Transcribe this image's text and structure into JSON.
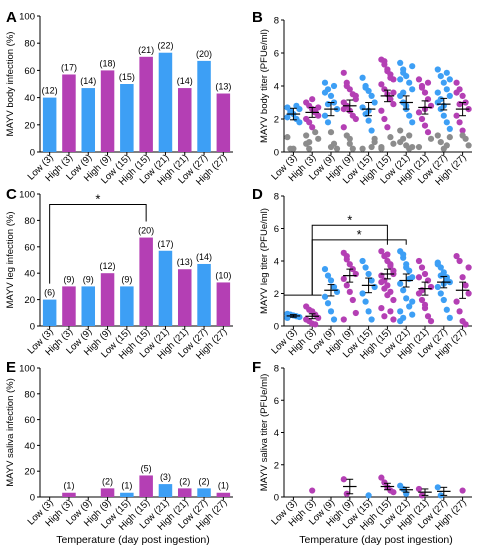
{
  "colors": {
    "low": "#3d9ff5",
    "high": "#b43fb4",
    "gray": "#8c8c8c"
  },
  "xlabel_left": "Temperature (day post ingestion)",
  "xlabel_right": "Temperature (day post ingestion)",
  "chart_data": [
    {
      "panel": "A",
      "type": "bar",
      "ylabel": "MAYV body infection (%)",
      "ylim": [
        0,
        100
      ],
      "yticks": [
        0,
        20,
        40,
        60,
        80,
        100
      ],
      "categories": [
        "Low (3)",
        "High (3)",
        "Low (9)",
        "High (9)",
        "Low (15)",
        "High (15)",
        "Low (21)",
        "High (21)",
        "Low (27)",
        "High (27)"
      ],
      "values": [
        40,
        57,
        47,
        60,
        50,
        70,
        73,
        47,
        67,
        43
      ],
      "labels": [
        "(12)",
        "(17)",
        "(14)",
        "(18)",
        "(15)",
        "(21)",
        "(22)",
        "(14)",
        "(20)",
        "(13)"
      ],
      "sig": []
    },
    {
      "panel": "B",
      "type": "scatter",
      "ylabel": "MAYV body titer (PFUe/ml)",
      "ylim": [
        0,
        8
      ],
      "yticks": [
        0,
        2,
        4,
        6,
        8
      ],
      "categories": [
        "Low (3)",
        "High (3)",
        "Low (9)",
        "High (9)",
        "Low (15)",
        "High (15)",
        "Low (21)",
        "High (21)",
        "Low (27)",
        "High (27)"
      ],
      "groups": [
        {
          "points": [
            2.7,
            2.5,
            2.3,
            2.0,
            1.8,
            0.9,
            0.2,
            0.2,
            2.8,
            2.6,
            2.1,
            2.4
          ],
          "gray": [
            5,
            6,
            7
          ],
          "mean": 2.3,
          "err": 0.35
        },
        {
          "points": [
            3.0,
            2.8,
            2.6,
            2.5,
            2.2,
            2.0,
            1.8,
            1.5,
            1.2,
            0.8,
            0.5,
            0.2,
            3.2,
            2.4,
            2.7,
            1.0,
            0.6
          ],
          "gray": [
            8,
            9,
            10,
            11,
            15,
            16
          ],
          "mean": 2.4,
          "err": 0.3
        },
        {
          "points": [
            4.2,
            3.8,
            3.4,
            3.0,
            2.6,
            2.2,
            1.8,
            1.2,
            0.5,
            0.2,
            3.6,
            2.9,
            0.3,
            4.0
          ],
          "gray": [
            7,
            8,
            9,
            12
          ],
          "mean": 2.6,
          "err": 0.4
        },
        {
          "points": [
            4.8,
            4.2,
            3.8,
            3.5,
            3.2,
            3.0,
            2.8,
            2.5,
            2.2,
            2.0,
            1.5,
            1.0,
            0.5,
            0.2,
            3.4,
            2.6,
            4.0,
            0.8
          ],
          "gray": [
            11,
            12,
            13,
            17
          ],
          "mean": 2.8,
          "err": 0.35
        },
        {
          "points": [
            4.5,
            4.0,
            3.7,
            3.4,
            3.0,
            2.7,
            2.3,
            1.9,
            1.3,
            0.6,
            0.2,
            3.9,
            2.5,
            0.3,
            0.8
          ],
          "gray": [
            9,
            10,
            13,
            14
          ],
          "mean": 2.6,
          "err": 0.4
        },
        {
          "points": [
            5.6,
            5.3,
            5.0,
            4.7,
            4.4,
            4.1,
            3.8,
            3.5,
            3.2,
            2.9,
            2.5,
            2.0,
            1.5,
            0.9,
            0.5,
            0.2,
            5.5,
            4.9,
            4.5,
            3.6,
            0.3
          ],
          "gray": [
            13,
            14,
            15,
            20
          ],
          "mean": 3.4,
          "err": 0.35
        },
        {
          "points": [
            5.4,
            5.0,
            4.6,
            4.2,
            3.8,
            3.4,
            3.0,
            2.6,
            2.2,
            1.8,
            1.3,
            0.8,
            0.4,
            0.2,
            5.2,
            4.4,
            3.6,
            2.8,
            1.0,
            0.3,
            0.6,
            4.8
          ],
          "gray": [
            10,
            11,
            12,
            13,
            18,
            19,
            20
          ],
          "mean": 3.0,
          "err": 0.4
        },
        {
          "points": [
            4.4,
            4.0,
            3.6,
            3.2,
            2.8,
            2.4,
            2.0,
            1.6,
            1.2,
            0.8,
            0.3,
            3.9,
            2.6,
            4.2
          ],
          "gray": [
            9,
            10
          ],
          "mean": 2.7,
          "err": 0.4
        },
        {
          "points": [
            5.0,
            4.6,
            4.2,
            3.8,
            3.4,
            3.0,
            2.6,
            2.2,
            1.8,
            1.4,
            1.0,
            0.6,
            0.2,
            4.8,
            4.4,
            3.6,
            3.2,
            2.8,
            0.4,
            0.9
          ],
          "gray": [
            10,
            11,
            12,
            18,
            19
          ],
          "mean": 2.9,
          "err": 0.35
        },
        {
          "points": [
            4.2,
            3.8,
            3.4,
            3.0,
            2.6,
            2.2,
            1.8,
            1.3,
            0.8,
            0.4,
            3.6,
            2.9,
            1.0
          ],
          "gray": [
            8,
            9,
            12
          ],
          "mean": 2.6,
          "err": 0.4
        }
      ]
    },
    {
      "panel": "C",
      "type": "bar",
      "ylabel": "MAYV leg infection (%)",
      "ylim": [
        0,
        100
      ],
      "yticks": [
        0,
        20,
        40,
        60,
        80,
        100
      ],
      "categories": [
        "Low (3)",
        "High (3)",
        "Low (9)",
        "High (9)",
        "Low (15)",
        "High (15)",
        "Low (21)",
        "High (21)",
        "Low (27)",
        "High (27)"
      ],
      "values": [
        20,
        30,
        30,
        40,
        30,
        67,
        57,
        43,
        47,
        33
      ],
      "labels": [
        "(6)",
        "(9)",
        "(9)",
        "(12)",
        "(9)",
        "(20)",
        "(17)",
        "(13)",
        "(14)",
        "(10)"
      ],
      "sig": [
        {
          "from": 0,
          "to": 5,
          "y": 92,
          "text": "*"
        }
      ]
    },
    {
      "panel": "D",
      "type": "scatter",
      "ylabel": "MAYV leg titer (PFUe/ml)",
      "ylim": [
        0,
        8
      ],
      "yticks": [
        0,
        2,
        4,
        6,
        8
      ],
      "categories": [
        "Low (3)",
        "High (3)",
        "Low (9)",
        "High (9)",
        "Low (15)",
        "High (15)",
        "Low (21)",
        "High (21)",
        "Low (27)",
        "High (27)"
      ],
      "groups": [
        {
          "points": [
            0.75,
            0.7,
            0.65,
            0.6,
            0.55,
            0.5
          ],
          "gray": [],
          "mean": 0.62,
          "err": 0.08
        },
        {
          "points": [
            1.2,
            1.0,
            0.9,
            0.7,
            0.5,
            0.4,
            0.3,
            0.15,
            0.1
          ],
          "gray": [],
          "mean": 0.6,
          "err": 0.15
        },
        {
          "points": [
            3.5,
            3.1,
            2.8,
            2.4,
            2.1,
            1.8,
            1.4,
            0.9,
            0.4
          ],
          "gray": [],
          "mean": 2.2,
          "err": 0.35
        },
        {
          "points": [
            4.5,
            4.1,
            3.8,
            3.5,
            3.2,
            2.9,
            2.5,
            2.1,
            1.6,
            0.8,
            0.4,
            4.3
          ],
          "gray": [],
          "mean": 3.1,
          "err": 0.4
        },
        {
          "points": [
            4.0,
            3.6,
            3.2,
            2.8,
            2.4,
            2.0,
            1.5,
            0.9,
            0.4
          ],
          "gray": [],
          "mean": 2.5,
          "err": 0.45
        },
        {
          "points": [
            4.6,
            4.3,
            4.0,
            3.7,
            3.4,
            3.1,
            2.8,
            2.5,
            2.1,
            1.6,
            1.1,
            0.6,
            4.4,
            3.8,
            3.2,
            2.7,
            2.3,
            1.9,
            0.9,
            0.4
          ],
          "gray": [],
          "mean": 3.2,
          "err": 0.3
        },
        {
          "points": [
            4.6,
            4.2,
            3.8,
            3.4,
            3.0,
            2.6,
            2.2,
            1.7,
            1.2,
            0.7,
            0.3,
            4.4,
            3.6,
            2.9,
            1.5,
            0.9,
            0.5
          ],
          "gray": [],
          "mean": 2.8,
          "err": 0.4
        },
        {
          "points": [
            4.0,
            3.6,
            3.2,
            2.8,
            2.4,
            2.0,
            1.6,
            1.1,
            0.6,
            0.3,
            3.0,
            2.2,
            1.3
          ],
          "gray": [],
          "mean": 2.3,
          "err": 0.4
        },
        {
          "points": [
            3.9,
            3.6,
            3.3,
            3.0,
            2.7,
            2.4,
            2.0,
            1.6,
            1.0,
            0.5,
            3.8,
            3.1,
            2.6,
            2.9
          ],
          "gray": [],
          "mean": 2.7,
          "err": 0.35
        },
        {
          "points": [
            4.3,
            4.0,
            3.0,
            2.5,
            2.0,
            1.5,
            0.9,
            0.3,
            0.1,
            3.6
          ],
          "gray": [],
          "mean": 2.2,
          "err": 0.5
        }
      ],
      "refline": {
        "y": 1.9,
        "to": 1
      },
      "sig": [
        {
          "from": 1,
          "to": 5,
          "y": 6.2,
          "text": "*"
        },
        {
          "from": 1,
          "to": 6,
          "y": 5.3,
          "text": "*"
        }
      ]
    },
    {
      "panel": "E",
      "type": "bar",
      "ylabel": "MAYV saliva infection (%)",
      "ylim": [
        0,
        100
      ],
      "yticks": [
        0,
        20,
        40,
        60,
        80,
        100
      ],
      "categories": [
        "Low (3)",
        "High (3)",
        "Low (9)",
        "High (9)",
        "Low (15)",
        "High (15)",
        "Low (21)",
        "High (21)",
        "Low (27)",
        "High (27)"
      ],
      "values": [
        0,
        3.3,
        0,
        6.7,
        3.3,
        16.7,
        10,
        6.7,
        6.7,
        3.3
      ],
      "labels": [
        "",
        "(1)",
        "",
        "(2)",
        "(1)",
        "(5)",
        "(3)",
        "(2)",
        "(2)",
        "(1)"
      ],
      "sig": []
    },
    {
      "panel": "F",
      "type": "scatter",
      "ylabel": "MAYV saliva titer (PFUe/ml)",
      "ylim": [
        0,
        8
      ],
      "yticks": [
        0,
        2,
        4,
        6,
        8
      ],
      "categories": [
        "Low (3)",
        "High (3)",
        "Low (9)",
        "High (9)",
        "Low (15)",
        "High (15)",
        "Low (21)",
        "High (21)",
        "Low (27)",
        "High (27)"
      ],
      "groups": [
        {
          "points": [],
          "gray": [],
          "mean": null,
          "err": 0
        },
        {
          "points": [
            0.4
          ],
          "gray": [],
          "mean": null,
          "err": 0
        },
        {
          "points": [],
          "gray": [],
          "mean": null,
          "err": 0
        },
        {
          "points": [
            1.1,
            0.2
          ],
          "gray": [],
          "mean": 0.65,
          "err": 0.45
        },
        {
          "points": [
            0.1
          ],
          "gray": [],
          "mean": null,
          "err": 0
        },
        {
          "points": [
            1.2,
            0.9,
            0.6,
            0.4,
            0.3
          ],
          "gray": [],
          "mean": 0.65,
          "err": 0.2
        },
        {
          "points": [
            0.7,
            0.5,
            0.2
          ],
          "gray": [],
          "mean": 0.45,
          "err": 0.15
        },
        {
          "points": [
            0.5,
            0.1
          ],
          "gray": [],
          "mean": 0.3,
          "err": 0.2
        },
        {
          "points": [
            0.6,
            0.1
          ],
          "gray": [],
          "mean": 0.35,
          "err": 0.25
        },
        {
          "points": [
            0.4
          ],
          "gray": [],
          "mean": null,
          "err": 0
        }
      ]
    }
  ]
}
